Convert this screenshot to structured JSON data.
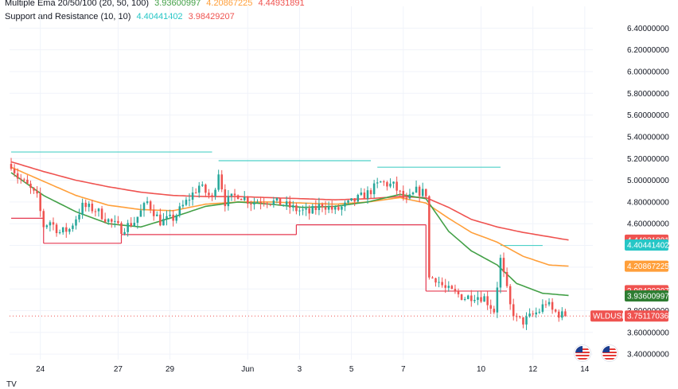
{
  "legend": {
    "ema": {
      "label": "Multiple Ema 20/50/100 (20, 50, 100)",
      "v20": "3.93600997",
      "v50": "4.20867225",
      "v100": "4.44931891"
    },
    "sr": {
      "label": "Support and Resistance (10, 10)",
      "v1": "4.40441402",
      "v2": "3.98429207"
    }
  },
  "colors": {
    "ema20": "#43a047",
    "ema50": "#ff9f3a",
    "ema100": "#ef5350",
    "support": "#e53950",
    "resistance": "#4dd0c8",
    "bull": "#26a69a",
    "bear": "#ef5350",
    "grid": "#f0f3fa",
    "price": "#ef5350"
  },
  "footer_logo": "TV",
  "chart_data": {
    "type": "candlestick",
    "symbol": "WLDUSD",
    "ylim": [
      3.35,
      6.6
    ],
    "y_ticks": [
      "6.40000000",
      "6.20000000",
      "6.00000000",
      "5.80000000",
      "5.60000000",
      "5.40000000",
      "5.20000000",
      "5.00000000",
      "4.80000000",
      "4.60000000",
      "4.40000000",
      "4.20000000",
      "4.00000000",
      "3.80000000",
      "3.60000000",
      "3.40000000"
    ],
    "x_ticks": [
      {
        "i": 9,
        "label": "24"
      },
      {
        "i": 33,
        "label": "27"
      },
      {
        "i": 49,
        "label": "29"
      },
      {
        "i": 73,
        "label": "Jun"
      },
      {
        "i": 89,
        "label": "3"
      },
      {
        "i": 105,
        "label": "5"
      },
      {
        "i": 121,
        "label": "7"
      },
      {
        "i": 145,
        "label": "10"
      },
      {
        "i": 161,
        "label": "12"
      },
      {
        "i": 177,
        "label": "14"
      }
    ],
    "n_slots": 180,
    "current_price": "3.75117036",
    "badges": [
      {
        "value": "4.44931891",
        "y": 4.449,
        "color": "#ef5350"
      },
      {
        "value": "4.40441402",
        "y": 4.404,
        "color": "#26c6c6"
      },
      {
        "value": "4.20867225",
        "y": 4.209,
        "color": "#ff9f3a"
      },
      {
        "value": "3.98429207",
        "y": 3.984,
        "color": "#ef5350"
      },
      {
        "value": "3.93600997",
        "y": 3.936,
        "color": "#2e7d32"
      }
    ],
    "resistance_lines": [
      {
        "x1": 0,
        "x2": 62,
        "y": 5.26
      },
      {
        "x1": 64,
        "x2": 111,
        "y": 5.18
      },
      {
        "x1": 113,
        "x2": 151,
        "y": 5.12
      },
      {
        "x1": 151,
        "x2": 164,
        "y": 4.4
      }
    ],
    "support_lines": [
      {
        "x1": 0,
        "x2": 10,
        "y": 4.65
      },
      {
        "x1": 10,
        "x2": 34,
        "y": 4.42
      },
      {
        "x1": 34,
        "x2": 88,
        "y": 4.5
      },
      {
        "x1": 88,
        "x2": 128,
        "y": 4.59
      },
      {
        "x1": 128,
        "x2": 153,
        "y": 3.98
      }
    ],
    "ohlc_anchors": [
      [
        0,
        5.15
      ],
      [
        2,
        5.03
      ],
      [
        5,
        4.95
      ],
      [
        8,
        4.84
      ],
      [
        10,
        4.58
      ],
      [
        12,
        4.62
      ],
      [
        15,
        4.52
      ],
      [
        18,
        4.55
      ],
      [
        22,
        4.76
      ],
      [
        26,
        4.73
      ],
      [
        30,
        4.63
      ],
      [
        34,
        4.55
      ],
      [
        38,
        4.62
      ],
      [
        42,
        4.8
      ],
      [
        46,
        4.62
      ],
      [
        50,
        4.65
      ],
      [
        54,
        4.8
      ],
      [
        58,
        4.95
      ],
      [
        62,
        4.83
      ],
      [
        64,
        5.08
      ],
      [
        66,
        4.8
      ],
      [
        70,
        4.87
      ],
      [
        74,
        4.8
      ],
      [
        78,
        4.82
      ],
      [
        84,
        4.78
      ],
      [
        88,
        4.73
      ],
      [
        92,
        4.7
      ],
      [
        96,
        4.78
      ],
      [
        100,
        4.72
      ],
      [
        104,
        4.78
      ],
      [
        110,
        4.88
      ],
      [
        114,
        4.98
      ],
      [
        118,
        4.95
      ],
      [
        122,
        4.8
      ],
      [
        125,
        4.9
      ],
      [
        128,
        4.88
      ],
      [
        129,
        4.1
      ],
      [
        131,
        4.1
      ],
      [
        134,
        4.0
      ],
      [
        137,
        3.96
      ],
      [
        140,
        3.92
      ],
      [
        143,
        3.94
      ],
      [
        146,
        3.92
      ],
      [
        149,
        3.8
      ],
      [
        151,
        4.27
      ],
      [
        154,
        3.84
      ],
      [
        156,
        3.72
      ],
      [
        158,
        3.7
      ],
      [
        160,
        3.74
      ],
      [
        163,
        3.8
      ],
      [
        165,
        3.88
      ],
      [
        167,
        3.8
      ],
      [
        169,
        3.77
      ],
      [
        171,
        3.75
      ]
    ],
    "ema20_anchors": [
      [
        0,
        5.07
      ],
      [
        10,
        4.86
      ],
      [
        20,
        4.71
      ],
      [
        30,
        4.6
      ],
      [
        40,
        4.57
      ],
      [
        50,
        4.66
      ],
      [
        60,
        4.76
      ],
      [
        70,
        4.8
      ],
      [
        80,
        4.78
      ],
      [
        90,
        4.75
      ],
      [
        100,
        4.76
      ],
      [
        110,
        4.8
      ],
      [
        120,
        4.87
      ],
      [
        128,
        4.83
      ],
      [
        135,
        4.53
      ],
      [
        142,
        4.35
      ],
      [
        150,
        4.22
      ],
      [
        156,
        4.05
      ],
      [
        164,
        3.96
      ],
      [
        172,
        3.94
      ]
    ],
    "ema50_anchors": [
      [
        0,
        5.12
      ],
      [
        10,
        4.99
      ],
      [
        20,
        4.86
      ],
      [
        30,
        4.77
      ],
      [
        40,
        4.73
      ],
      [
        50,
        4.72
      ],
      [
        60,
        4.78
      ],
      [
        70,
        4.8
      ],
      [
        80,
        4.8
      ],
      [
        90,
        4.79
      ],
      [
        100,
        4.78
      ],
      [
        110,
        4.8
      ],
      [
        120,
        4.84
      ],
      [
        128,
        4.79
      ],
      [
        135,
        4.65
      ],
      [
        142,
        4.52
      ],
      [
        150,
        4.43
      ],
      [
        158,
        4.3
      ],
      [
        166,
        4.22
      ],
      [
        172,
        4.21
      ]
    ],
    "ema100_anchors": [
      [
        0,
        5.17
      ],
      [
        10,
        5.08
      ],
      [
        20,
        5.0
      ],
      [
        30,
        4.94
      ],
      [
        40,
        4.89
      ],
      [
        50,
        4.86
      ],
      [
        60,
        4.85
      ],
      [
        70,
        4.85
      ],
      [
        80,
        4.84
      ],
      [
        90,
        4.83
      ],
      [
        100,
        4.82
      ],
      [
        110,
        4.83
      ],
      [
        120,
        4.85
      ],
      [
        128,
        4.84
      ],
      [
        135,
        4.75
      ],
      [
        142,
        4.64
      ],
      [
        150,
        4.57
      ],
      [
        158,
        4.52
      ],
      [
        166,
        4.48
      ],
      [
        172,
        4.45
      ]
    ]
  }
}
